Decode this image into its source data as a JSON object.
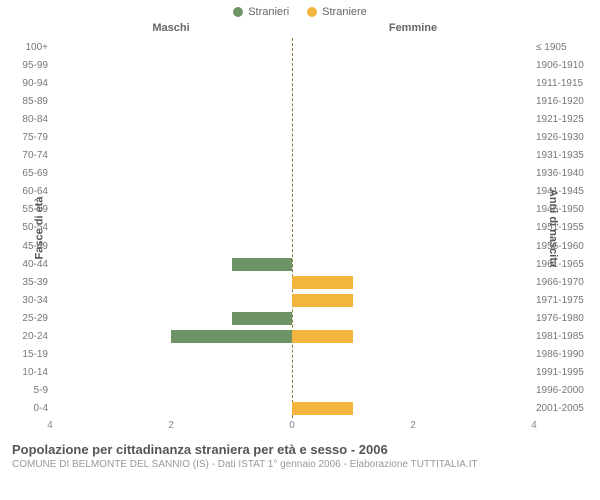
{
  "legend": {
    "male": {
      "label": "Stranieri",
      "color": "#6e9465"
    },
    "female": {
      "label": "Straniere",
      "color": "#f3b53e"
    }
  },
  "headers": {
    "male": "Maschi",
    "female": "Femmine"
  },
  "axis_labels": {
    "left": "Fasce di età",
    "right": "Anni di nascita"
  },
  "xmax": 4,
  "xticks": [
    4,
    2,
    0,
    2,
    4
  ],
  "centerline_color": "#8a7a3a",
  "rows": [
    {
      "age": "100+",
      "birth": "≤ 1905",
      "m": 0,
      "f": 0
    },
    {
      "age": "95-99",
      "birth": "1906-1910",
      "m": 0,
      "f": 0
    },
    {
      "age": "90-94",
      "birth": "1911-1915",
      "m": 0,
      "f": 0
    },
    {
      "age": "85-89",
      "birth": "1916-1920",
      "m": 0,
      "f": 0
    },
    {
      "age": "80-84",
      "birth": "1921-1925",
      "m": 0,
      "f": 0
    },
    {
      "age": "75-79",
      "birth": "1926-1930",
      "m": 0,
      "f": 0
    },
    {
      "age": "70-74",
      "birth": "1931-1935",
      "m": 0,
      "f": 0
    },
    {
      "age": "65-69",
      "birth": "1936-1940",
      "m": 0,
      "f": 0
    },
    {
      "age": "60-64",
      "birth": "1941-1945",
      "m": 0,
      "f": 0
    },
    {
      "age": "55-59",
      "birth": "1946-1950",
      "m": 0,
      "f": 0
    },
    {
      "age": "50-54",
      "birth": "1951-1955",
      "m": 0,
      "f": 0
    },
    {
      "age": "45-49",
      "birth": "1956-1960",
      "m": 0,
      "f": 0
    },
    {
      "age": "40-44",
      "birth": "1961-1965",
      "m": 1,
      "f": 0
    },
    {
      "age": "35-39",
      "birth": "1966-1970",
      "m": 0,
      "f": 1
    },
    {
      "age": "30-34",
      "birth": "1971-1975",
      "m": 0,
      "f": 1
    },
    {
      "age": "25-29",
      "birth": "1976-1980",
      "m": 1,
      "f": 0
    },
    {
      "age": "20-24",
      "birth": "1981-1985",
      "m": 2,
      "f": 1
    },
    {
      "age": "15-19",
      "birth": "1986-1990",
      "m": 0,
      "f": 0
    },
    {
      "age": "10-14",
      "birth": "1991-1995",
      "m": 0,
      "f": 0
    },
    {
      "age": "5-9",
      "birth": "1996-2000",
      "m": 0,
      "f": 0
    },
    {
      "age": "0-4",
      "birth": "2001-2005",
      "m": 0,
      "f": 1
    }
  ],
  "footer": {
    "title": "Popolazione per cittadinanza straniera per età e sesso - 2006",
    "subtitle": "COMUNE DI BELMONTE DEL SANNIO (IS) - Dati ISTAT 1° gennaio 2006 - Elaborazione TUTTITALIA.IT"
  }
}
